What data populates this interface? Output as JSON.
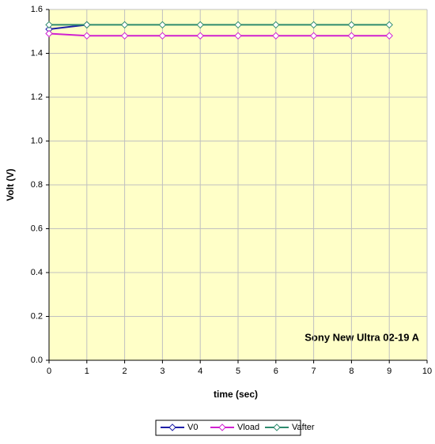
{
  "chart_data": {
    "type": "line",
    "xlabel": "time (sec)",
    "ylabel": "Volt (V)",
    "annotation": "Sony New Ultra 02-19 A",
    "xlim": [
      0,
      10
    ],
    "xticks": [
      0,
      1,
      2,
      3,
      4,
      5,
      6,
      7,
      8,
      9,
      10
    ],
    "ylim": [
      0,
      1.6
    ],
    "yticks": [
      {
        "value": 0,
        "label": "0.0"
      },
      0.2,
      0.4,
      0.6,
      0.8,
      {
        "value": 1,
        "label": "1.0"
      },
      1.2,
      1.4,
      1.6
    ],
    "grid": true,
    "legend": "bottom",
    "series": [
      {
        "name": "V0",
        "color": "#1f1fa8",
        "x": [
          0,
          1
        ],
        "values": [
          1.51,
          1.53
        ]
      },
      {
        "name": "Vload",
        "color": "#d020d0",
        "x": [
          0,
          1,
          2,
          3,
          4,
          5,
          6,
          7,
          8,
          9
        ],
        "values": [
          1.49,
          1.48,
          1.48,
          1.48,
          1.48,
          1.48,
          1.48,
          1.48,
          1.48,
          1.48
        ]
      },
      {
        "name": "Vafter",
        "color": "#2e8b6e",
        "x": [
          0,
          1,
          2,
          3,
          4,
          5,
          6,
          7,
          8,
          9
        ],
        "values": [
          1.53,
          1.53,
          1.53,
          1.53,
          1.53,
          1.53,
          1.53,
          1.53,
          1.53,
          1.53
        ]
      }
    ]
  }
}
